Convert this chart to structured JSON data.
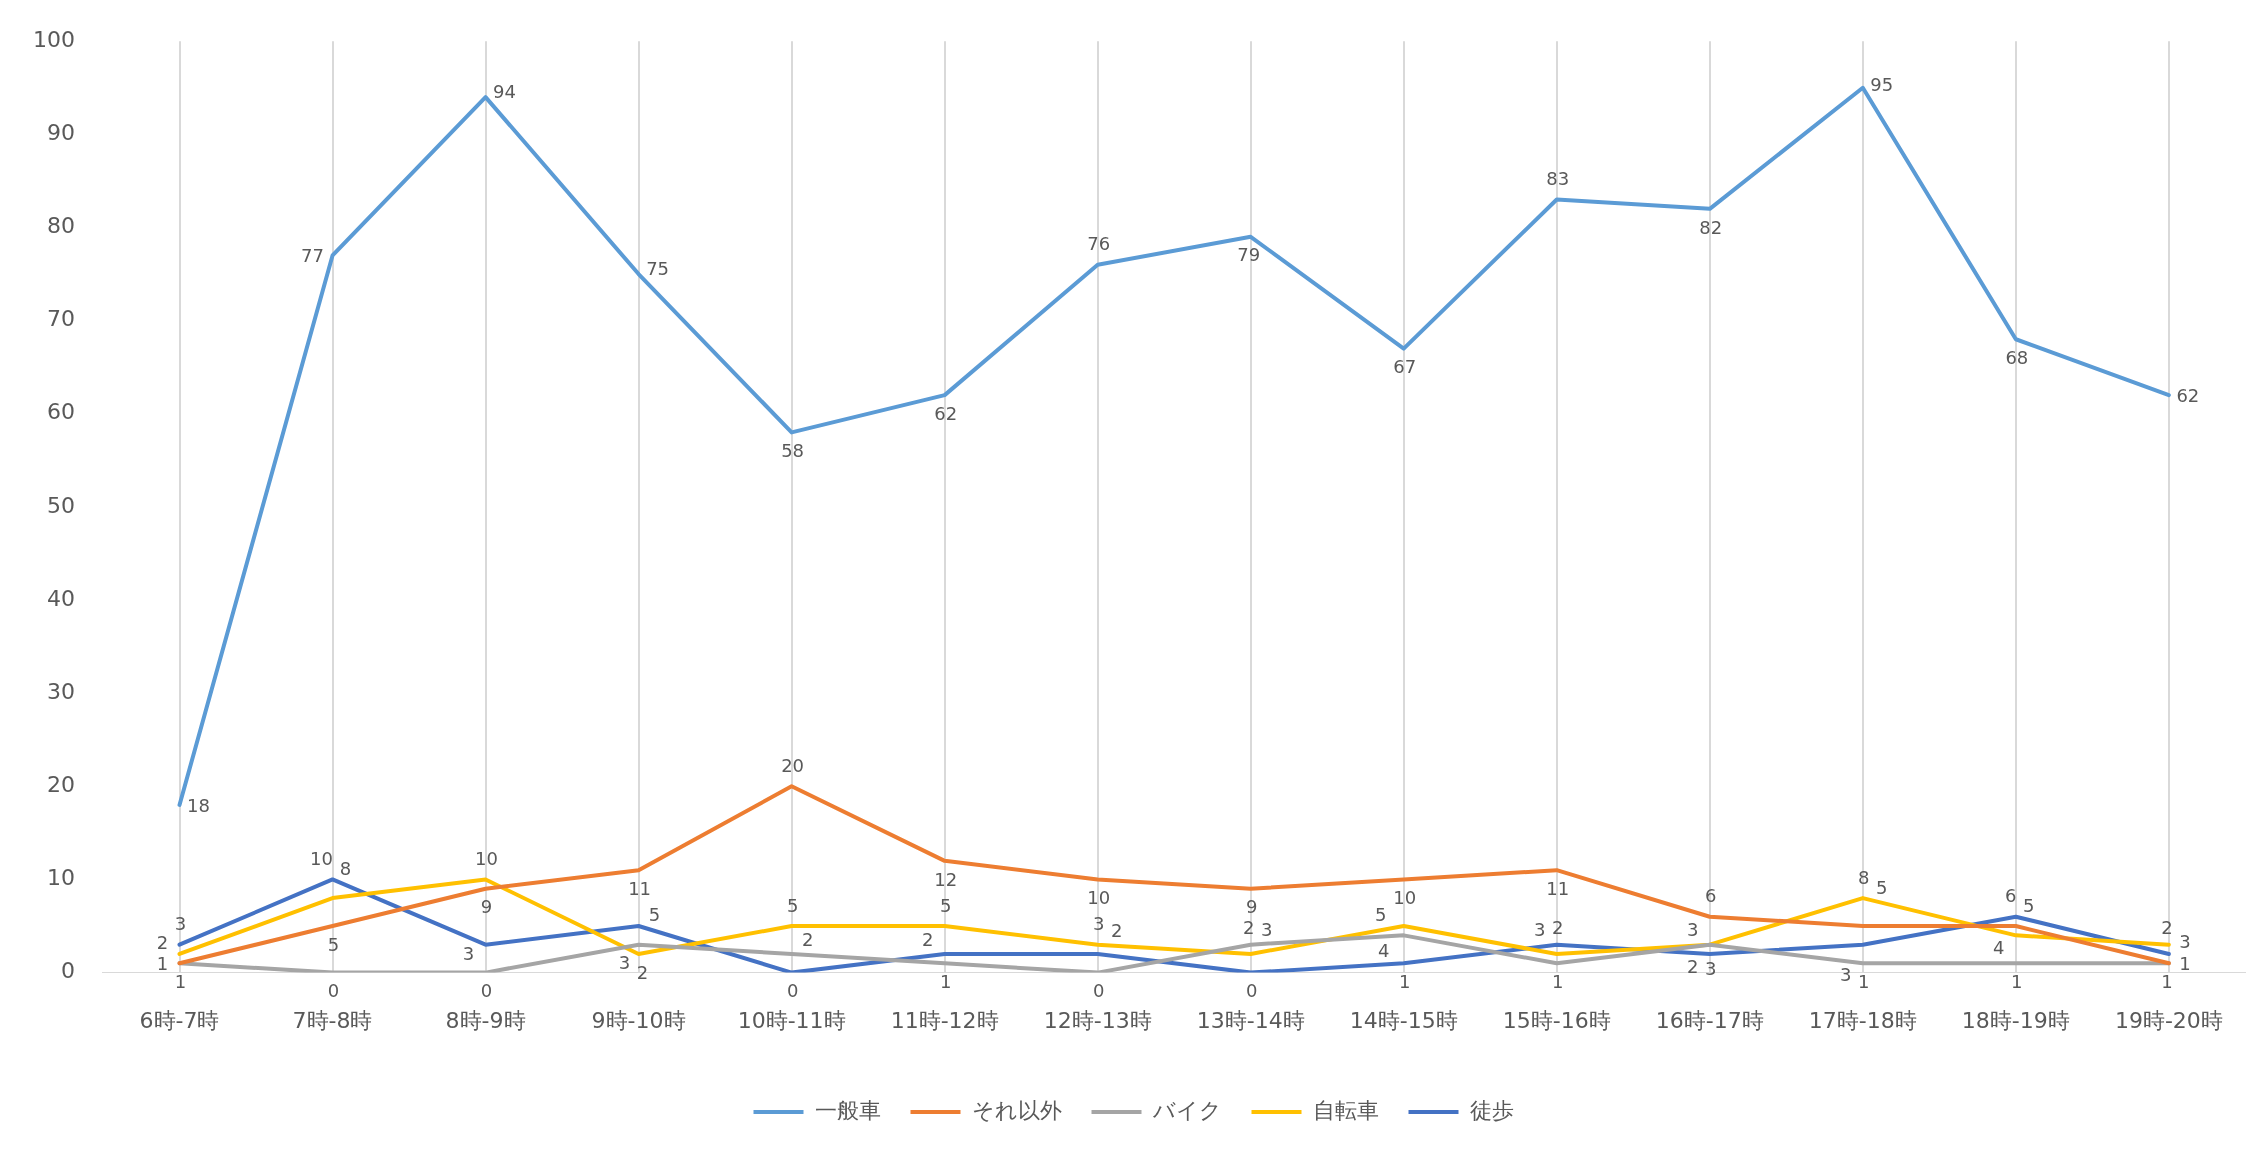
{
  "chart_data": {
    "type": "line",
    "categories": [
      "6時-7時",
      "7時-8時",
      "8時-9時",
      "9時-10時",
      "10時-11時",
      "11時-12時",
      "12時-13時",
      "13時-14時",
      "14時-15時",
      "15時-16時",
      "16時-17時",
      "17時-18時",
      "18時-19時",
      "19時-20時"
    ],
    "series": [
      {
        "name": "一般車",
        "color": "#5b9bd5",
        "values": [
          18,
          77,
          94,
          75,
          58,
          62,
          76,
          79,
          67,
          83,
          82,
          95,
          68,
          62
        ]
      },
      {
        "name": "それ以外",
        "color": "#ed7d31",
        "values": [
          1,
          5,
          9,
          11,
          20,
          12,
          10,
          9,
          10,
          11,
          6,
          5,
          5,
          1
        ]
      },
      {
        "name": "バイク",
        "color": "#a5a5a5",
        "values": [
          1,
          0,
          0,
          3,
          2,
          1,
          0,
          3,
          4,
          1,
          3,
          1,
          1,
          1
        ]
      },
      {
        "name": "自転車",
        "color": "#ffc000",
        "values": [
          2,
          8,
          10,
          2,
          5,
          5,
          3,
          2,
          5,
          2,
          3,
          8,
          4,
          3
        ]
      },
      {
        "name": "徒歩",
        "color": "#4472c4",
        "values": [
          3,
          10,
          3,
          5,
          0,
          2,
          2,
          0,
          1,
          3,
          2,
          3,
          6,
          2
        ]
      }
    ],
    "ylim": [
      0,
      100
    ],
    "yticks": [
      0,
      10,
      20,
      30,
      40,
      50,
      60,
      70,
      80,
      90,
      100
    ],
    "grid": "x",
    "legend": "bottom",
    "data_labels": true,
    "marker": "none",
    "line_style": "solid"
  }
}
